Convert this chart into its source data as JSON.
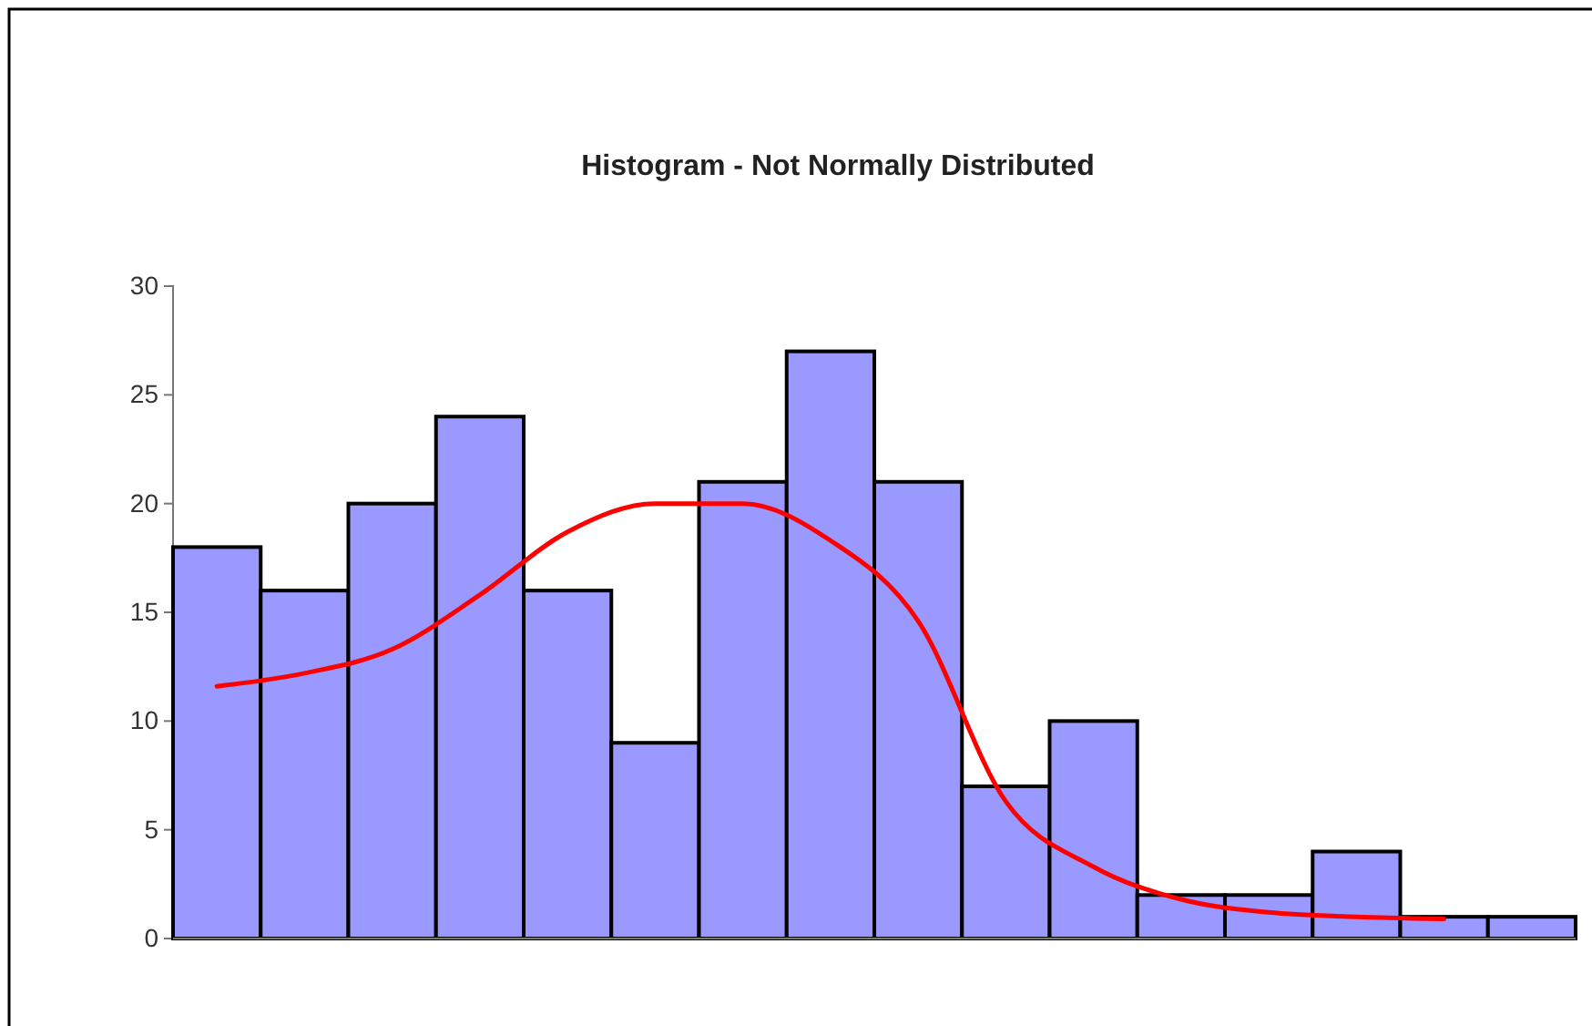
{
  "chart_data": {
    "type": "bar",
    "title": "Histogram -  Not Normally Distributed",
    "categories": [
      null,
      null,
      null,
      null,
      null,
      null,
      null,
      null,
      null,
      null,
      null,
      null,
      null,
      null,
      null,
      null
    ],
    "series": [
      {
        "color": "#9999ff",
        "values": [
          18,
          16,
          20,
          24,
          16,
          9,
          21,
          27,
          21,
          7,
          10,
          2,
          2,
          4,
          1,
          1
        ]
      },
      {
        "type": "line",
        "color": "#ff0000",
        "values": [
          11.6,
          12.2,
          13.3,
          15.8,
          18.7,
          20,
          20,
          18.3,
          14.6,
          6.3,
          3.3,
          1.8,
          1.2,
          1,
          0.9,
          null
        ]
      }
    ],
    "ylim": [
      0,
      30
    ],
    "yticks": [
      0,
      5,
      10,
      15,
      20,
      25,
      30
    ],
    "grid": false,
    "marker": "none",
    "line_style": "solid"
  }
}
